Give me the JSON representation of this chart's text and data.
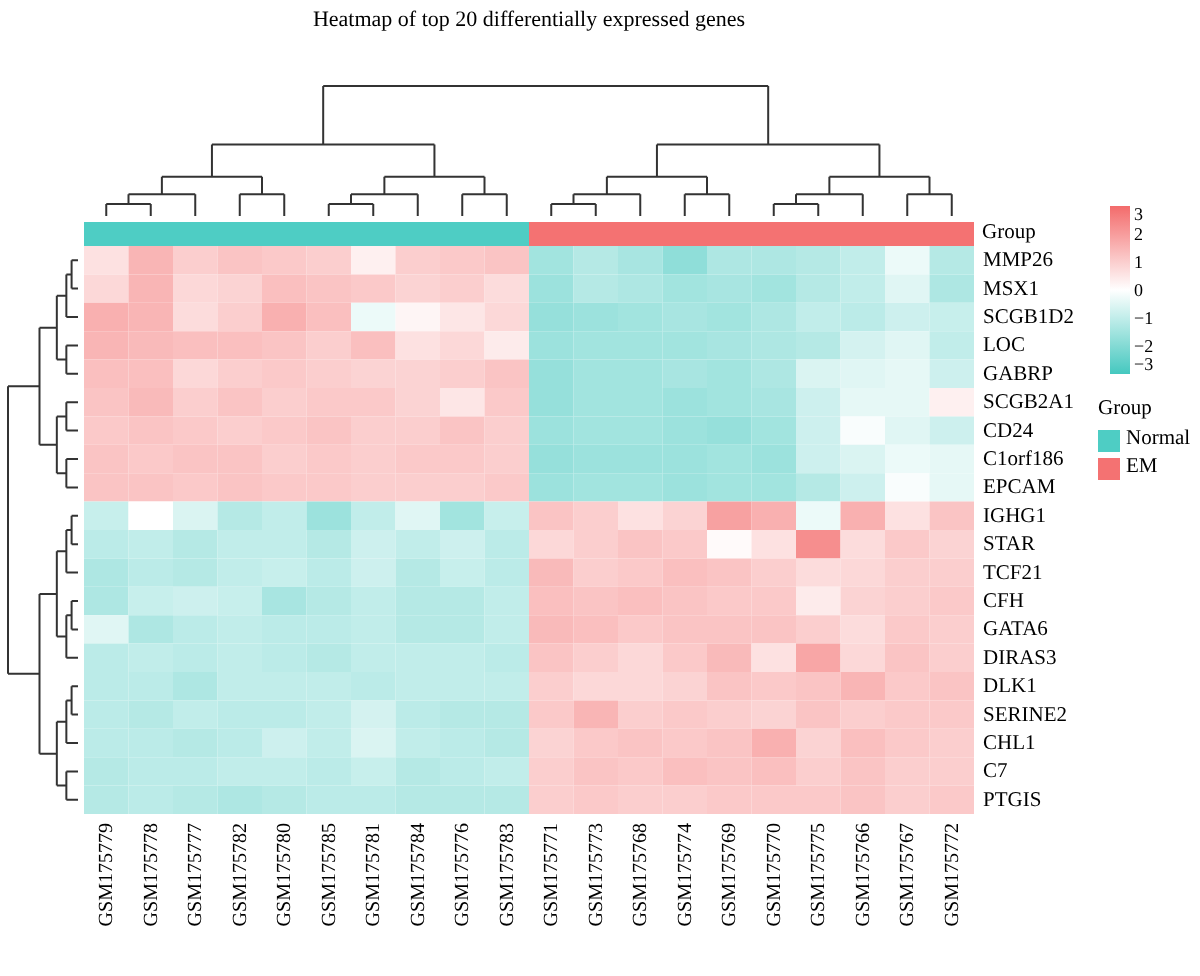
{
  "chart_data": {
    "type": "heatmap",
    "title": "Heatmap of top 20 differentially expressed genes",
    "y2label": "Group",
    "legend_title": "Group",
    "annotations": [
      "Normal",
      "EM"
    ],
    "clim": [
      -3,
      3
    ],
    "cticks": [
      -3,
      -2,
      -1,
      0,
      1,
      2,
      3
    ],
    "categories": [
      "GSM175779",
      "GSM175778",
      "GSM175777",
      "GSM175782",
      "GSM175780",
      "GSM175785",
      "GSM175781",
      "GSM175784",
      "GSM175776",
      "GSM175783",
      "GSM175771",
      "GSM175773",
      "GSM175768",
      "GSM175774",
      "GSM175769",
      "GSM175770",
      "GSM175775",
      "GSM175766",
      "GSM175767",
      "GSM175772"
    ],
    "y_categories": [
      "MMP26",
      "MSX1",
      "SCGB1D2",
      "LOC",
      "GABRP",
      "SCGB2A1",
      "CD24",
      "C1orf186",
      "EPCAM",
      "IGHG1",
      "STAR",
      "TCF21",
      "CFH",
      "GATA6",
      "DIRAS3",
      "DLK1",
      "SERINE2",
      "CHL1",
      "C7",
      "PTGIS"
    ],
    "cells": [
      [
        0.6,
        1.5,
        1.0,
        1.2,
        1.1,
        1.0,
        0.3,
        1.0,
        1.1,
        1.2,
        -1.5,
        -1.2,
        -1.4,
        -1.8,
        -1.3,
        -1.3,
        -1.2,
        -1.0,
        -0.3,
        -1.2
      ],
      [
        0.8,
        1.5,
        0.8,
        0.9,
        1.3,
        1.2,
        1.1,
        0.9,
        1.0,
        0.7,
        -1.6,
        -1.2,
        -1.3,
        -1.5,
        -1.4,
        -1.5,
        -1.2,
        -1.0,
        -0.5,
        -1.3
      ],
      [
        1.6,
        1.5,
        0.7,
        1.0,
        1.6,
        1.3,
        -0.3,
        0.2,
        0.5,
        0.8,
        -1.7,
        -1.6,
        -1.5,
        -1.4,
        -1.5,
        -1.3,
        -1.0,
        -1.1,
        -0.8,
        -0.9
      ],
      [
        1.5,
        1.4,
        1.3,
        1.3,
        1.2,
        1.0,
        1.3,
        0.6,
        0.8,
        0.4,
        -1.6,
        -1.5,
        -1.5,
        -1.5,
        -1.4,
        -1.3,
        -1.2,
        -0.7,
        -0.5,
        -1.0
      ],
      [
        1.3,
        1.3,
        0.8,
        1.0,
        1.1,
        1.0,
        0.9,
        0.9,
        1.0,
        1.2,
        -1.7,
        -1.5,
        -1.5,
        -1.4,
        -1.5,
        -1.3,
        -0.6,
        -0.5,
        -0.4,
        -0.8
      ],
      [
        1.2,
        1.4,
        1.0,
        1.2,
        1.0,
        1.1,
        1.1,
        0.9,
        0.5,
        1.1,
        -1.7,
        -1.5,
        -1.5,
        -1.6,
        -1.5,
        -1.4,
        -0.8,
        -0.4,
        -0.4,
        0.3
      ],
      [
        1.1,
        1.2,
        1.1,
        1.0,
        1.1,
        1.2,
        1.0,
        1.0,
        1.2,
        1.0,
        -1.6,
        -1.5,
        -1.5,
        -1.6,
        -1.7,
        -1.5,
        -0.8,
        -0.1,
        -0.5,
        -0.8
      ],
      [
        1.2,
        1.1,
        1.2,
        1.2,
        1.0,
        1.1,
        1.0,
        1.1,
        1.1,
        1.0,
        -1.7,
        -1.6,
        -1.6,
        -1.6,
        -1.5,
        -1.6,
        -0.8,
        -0.6,
        -0.3,
        -0.4
      ],
      [
        1.2,
        1.2,
        1.1,
        1.2,
        1.1,
        1.1,
        1.0,
        1.0,
        1.0,
        1.1,
        -1.6,
        -1.5,
        -1.5,
        -1.6,
        -1.5,
        -1.5,
        -1.2,
        -0.8,
        -0.1,
        -0.4
      ],
      [
        -0.9,
        0.0,
        -0.6,
        -1.2,
        -1.0,
        -1.6,
        -1.0,
        -0.5,
        -1.5,
        -0.9,
        1.2,
        1.0,
        0.6,
        0.9,
        1.9,
        1.6,
        -0.3,
        1.6,
        0.6,
        1.2
      ],
      [
        -1.1,
        -1.0,
        -1.2,
        -1.0,
        -1.0,
        -1.2,
        -0.8,
        -1.0,
        -0.8,
        -1.1,
        0.8,
        1.0,
        1.2,
        1.1,
        0.1,
        0.6,
        2.3,
        0.7,
        1.1,
        0.9
      ],
      [
        -1.3,
        -1.1,
        -1.2,
        -1.0,
        -0.9,
        -1.1,
        -0.8,
        -1.2,
        -0.9,
        -1.1,
        1.4,
        1.0,
        1.1,
        1.3,
        1.2,
        1.0,
        0.7,
        0.8,
        1.0,
        1.0
      ],
      [
        -1.3,
        -0.9,
        -0.8,
        -0.9,
        -1.4,
        -1.2,
        -1.0,
        -1.2,
        -1.2,
        -1.0,
        1.3,
        1.2,
        1.3,
        1.2,
        1.1,
        1.1,
        0.4,
        0.9,
        1.0,
        1.1
      ],
      [
        -0.5,
        -1.3,
        -1.1,
        -1.0,
        -1.1,
        -1.1,
        -1.0,
        -1.2,
        -1.2,
        -1.0,
        1.4,
        1.3,
        1.1,
        1.2,
        1.2,
        1.2,
        1.0,
        0.7,
        1.1,
        1.0
      ],
      [
        -1.1,
        -1.0,
        -1.1,
        -1.0,
        -1.1,
        -1.2,
        -1.0,
        -1.0,
        -1.0,
        -1.1,
        1.2,
        1.0,
        0.8,
        1.1,
        1.4,
        0.6,
        1.8,
        0.8,
        1.2,
        1.0
      ],
      [
        -1.1,
        -1.1,
        -1.3,
        -1.0,
        -1.0,
        -1.0,
        -1.1,
        -1.0,
        -1.0,
        -1.0,
        1.0,
        0.8,
        0.8,
        0.9,
        1.2,
        1.1,
        1.2,
        1.5,
        1.1,
        1.2
      ],
      [
        -1.1,
        -1.2,
        -1.0,
        -1.1,
        -1.1,
        -1.0,
        -0.7,
        -1.1,
        -1.2,
        -1.2,
        1.1,
        1.5,
        1.0,
        1.1,
        1.0,
        0.9,
        1.2,
        1.0,
        1.1,
        1.1
      ],
      [
        -1.1,
        -1.1,
        -1.2,
        -1.1,
        -0.8,
        -1.0,
        -0.6,
        -1.0,
        -1.1,
        -1.2,
        0.9,
        1.1,
        1.2,
        1.1,
        1.2,
        1.6,
        0.9,
        1.3,
        1.1,
        1.0
      ],
      [
        -1.2,
        -1.1,
        -1.1,
        -1.0,
        -1.0,
        -1.1,
        -0.9,
        -1.2,
        -1.1,
        -1.0,
        1.0,
        1.2,
        1.1,
        1.3,
        1.2,
        1.3,
        1.0,
        1.2,
        1.0,
        1.0
      ],
      [
        -1.2,
        -1.1,
        -1.2,
        -1.3,
        -1.2,
        -1.1,
        -1.1,
        -1.2,
        -1.2,
        -1.2,
        1.0,
        1.1,
        1.0,
        1.0,
        1.1,
        1.1,
        1.1,
        1.2,
        1.0,
        1.1
      ]
    ]
  }
}
